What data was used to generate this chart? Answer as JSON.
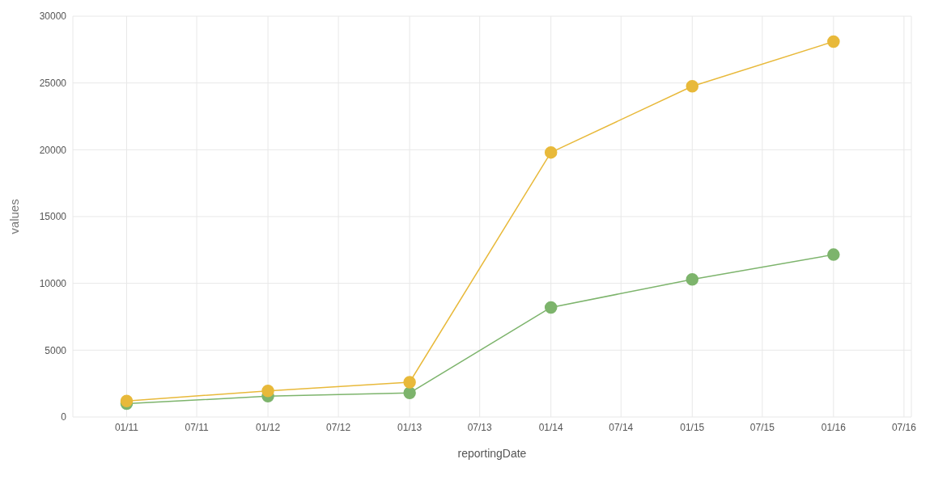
{
  "chart_data": {
    "type": "line",
    "xlabel": "reportingDate",
    "ylabel": "values",
    "x": [
      "2011-01",
      "2012-01",
      "2013-01",
      "2014-01",
      "2015-01",
      "2016-01"
    ],
    "series": [
      {
        "color": "#e8b93a",
        "values": [
          1200,
          1950,
          2600,
          19800,
          24750,
          28100
        ]
      },
      {
        "color": "#7db46c",
        "values": [
          1000,
          1550,
          1800,
          8200,
          10300,
          12150
        ]
      }
    ],
    "xlim": [
      "2010-08-15",
      "2016-07-20"
    ],
    "xticks": [
      {
        "value": "2011-01",
        "label": "01/11"
      },
      {
        "value": "2011-07",
        "label": "07/11"
      },
      {
        "value": "2012-01",
        "label": "01/12"
      },
      {
        "value": "2012-07",
        "label": "07/12"
      },
      {
        "value": "2013-01",
        "label": "01/13"
      },
      {
        "value": "2013-07",
        "label": "07/13"
      },
      {
        "value": "2014-01",
        "label": "01/14"
      },
      {
        "value": "2014-07",
        "label": "07/14"
      },
      {
        "value": "2015-01",
        "label": "01/15"
      },
      {
        "value": "2015-07",
        "label": "07/15"
      },
      {
        "value": "2016-01",
        "label": "01/16"
      },
      {
        "value": "2016-07",
        "label": "07/16"
      }
    ],
    "ylim": [
      0,
      30000
    ],
    "yticks": [
      0,
      5000,
      10000,
      15000,
      20000,
      25000,
      30000
    ],
    "grid": true,
    "marker": "circle",
    "line_style": "solid"
  }
}
